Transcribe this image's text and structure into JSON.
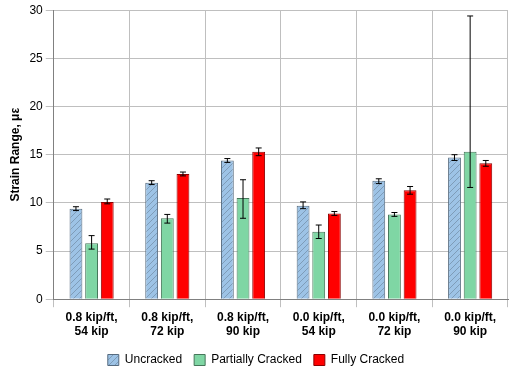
{
  "chart_data": {
    "type": "bar",
    "y_label": "Strain Range, με",
    "categories": [
      [
        "0.8 kip/ft,",
        "54 kip"
      ],
      [
        "0.8 kip/ft,",
        "72 kip"
      ],
      [
        "0.8 kip/ft,",
        "90 kip"
      ],
      [
        "0.0 kip/ft,",
        "54 kip"
      ],
      [
        "0.0 kip/ft,",
        "72 kip"
      ],
      [
        "0.0 kip/ft,",
        "90 kip"
      ]
    ],
    "series": [
      {
        "name": "Uncracked",
        "color": "#9dc3e6",
        "values": [
          9.4,
          12.1,
          14.4,
          9.7,
          12.3,
          14.7
        ],
        "error_bars": [
          [
            9.2,
            9.6
          ],
          [
            11.9,
            12.3
          ],
          [
            14.2,
            14.6
          ],
          [
            9.4,
            10.1
          ],
          [
            12.0,
            12.5
          ],
          [
            14.4,
            15.0
          ]
        ]
      },
      {
        "name": "Partially Cracked",
        "color": "#7fd6a4",
        "values": [
          5.8,
          8.4,
          10.5,
          7.0,
          8.8,
          15.3
        ],
        "error_bars": [
          [
            5.2,
            6.6
          ],
          [
            7.9,
            8.8
          ],
          [
            8.4,
            12.4
          ],
          [
            6.3,
            7.7
          ],
          [
            8.6,
            9.0
          ],
          [
            11.6,
            29.4
          ]
        ]
      },
      {
        "name": "Fully Cracked",
        "color": "#ff0000",
        "values": [
          10.1,
          13.0,
          15.3,
          8.9,
          11.3,
          14.1
        ],
        "error_bars": [
          [
            9.9,
            10.4
          ],
          [
            12.8,
            13.2
          ],
          [
            14.9,
            15.7
          ],
          [
            8.7,
            9.1
          ],
          [
            10.9,
            11.7
          ],
          [
            13.8,
            14.4
          ]
        ]
      }
    ],
    "ylim": [
      0,
      30
    ],
    "yticks": [
      0,
      5,
      10,
      15,
      20,
      25,
      30
    ],
    "grid": true,
    "legend": "bottom"
  }
}
